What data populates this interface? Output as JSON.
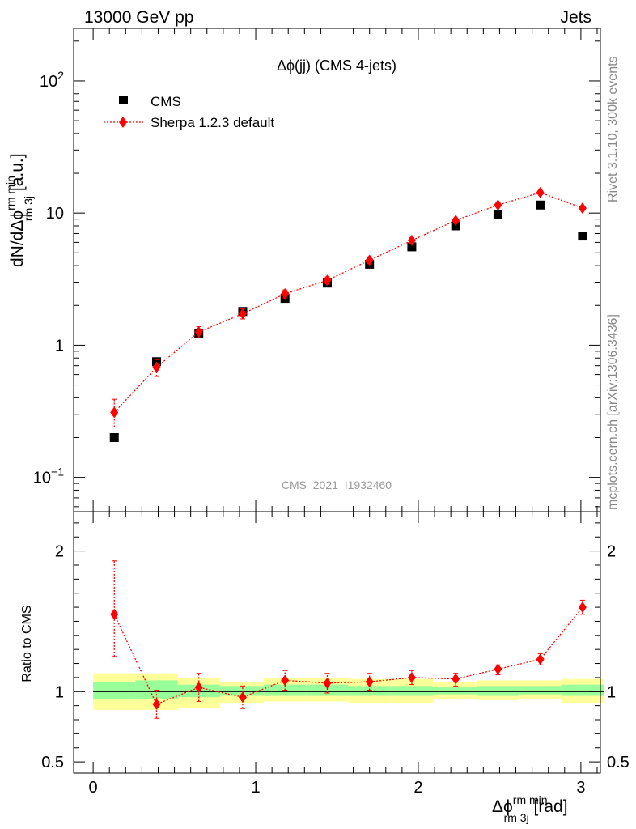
{
  "header": {
    "left": "13000 GeV pp",
    "right": "Jets"
  },
  "side_labels": {
    "events": "Rivet 3.1.10,  300k events",
    "source": "mcplots.cern.ch [arXiv:1306.3436]"
  },
  "colors": {
    "data": "#000000",
    "mc": "#ff0000",
    "band_inner": "#99ff99",
    "band_outer": "#ffff99"
  },
  "chart_data": [
    {
      "type": "scatter",
      "title": "Δϕ(jj) (CMS 4-jets)",
      "ylabel": "dN/dΔϕ",
      "ylabel_sup": "rm min",
      "ylabel_sub": "rm 3j",
      "ylabel_unit": "[a.u.]",
      "yscale": "log",
      "xlim": [
        -0.12,
        3.12
      ],
      "ylim": [
        0.055,
        250
      ],
      "yticks": [
        {
          "value": 0.1,
          "base": "10",
          "exp": "−1"
        },
        {
          "value": 1,
          "label": "1"
        },
        {
          "value": 10,
          "label": "10"
        },
        {
          "value": 100,
          "base": "10",
          "exp": "2"
        }
      ],
      "watermark": "CMS_2021_I1932460",
      "legend": {
        "position": "top-left",
        "entries": [
          "CMS",
          "Sherpa 1.2.3 default"
        ]
      },
      "x": [
        0.13,
        0.39,
        0.65,
        0.92,
        1.18,
        1.44,
        1.7,
        1.96,
        2.23,
        2.49,
        2.75,
        3.01
      ],
      "series": [
        {
          "name": "CMS",
          "style": "marker-square",
          "values": [
            0.2,
            0.75,
            1.22,
            1.8,
            2.26,
            2.95,
            4.1,
            5.55,
            8.0,
            9.8,
            11.5,
            6.7
          ]
        },
        {
          "name": "Sherpa 1.2.3 default",
          "style": "diamond-dotted",
          "values": [
            0.31,
            0.68,
            1.26,
            1.73,
            2.45,
            3.1,
            4.4,
            6.2,
            8.8,
            11.5,
            14.3,
            10.9
          ],
          "err_lo": [
            0.24,
            0.58,
            1.14,
            1.58,
            2.28,
            2.92,
            4.15,
            5.9,
            8.45,
            11.1,
            13.8,
            10.5
          ],
          "err_hi": [
            0.39,
            0.78,
            1.38,
            1.88,
            2.62,
            3.28,
            4.65,
            6.5,
            9.15,
            11.9,
            14.8,
            11.3
          ]
        }
      ]
    },
    {
      "type": "scatter",
      "ylabel": "Ratio to CMS",
      "xlabel": "Δϕ",
      "xlabel_sup": "rm min",
      "xlabel_sub": "rm 3j",
      "xlabel_unit": "[rad]",
      "xlim": [
        -0.12,
        3.12
      ],
      "ylim": [
        0.42,
        2.28
      ],
      "xticks": [
        0,
        1,
        2,
        3
      ],
      "yticks": [
        0.5,
        1,
        2
      ],
      "bin_edges": [
        0,
        0.26,
        0.52,
        0.78,
        1.05,
        1.31,
        1.57,
        1.83,
        2.09,
        2.36,
        2.62,
        2.88,
        3.14
      ],
      "band_inner": {
        "lo": [
          0.95,
          0.95,
          0.96,
          0.97,
          0.97,
          0.97,
          0.97,
          0.97,
          0.98,
          0.97,
          0.98,
          0.97
        ],
        "hi": [
          1.07,
          1.08,
          1.05,
          1.04,
          1.05,
          1.05,
          1.04,
          1.04,
          1.03,
          1.04,
          1.04,
          1.05
        ]
      },
      "band_outer": {
        "lo": [
          0.87,
          0.87,
          0.88,
          0.92,
          0.93,
          0.93,
          0.92,
          0.92,
          0.95,
          0.94,
          0.95,
          0.92
        ],
        "hi": [
          1.13,
          1.13,
          1.1,
          1.07,
          1.1,
          1.1,
          1.09,
          1.09,
          1.07,
          1.08,
          1.08,
          1.09
        ]
      },
      "reference": 1,
      "x": [
        0.13,
        0.39,
        0.65,
        0.92,
        1.18,
        1.44,
        1.7,
        1.96,
        2.23,
        2.49,
        2.75,
        3.01
      ],
      "series": [
        {
          "name": "Sherpa 1.2.3 default",
          "style": "diamond-dotted",
          "values": [
            1.55,
            0.91,
            1.03,
            0.96,
            1.08,
            1.06,
            1.07,
            1.1,
            1.09,
            1.16,
            1.23,
            1.6
          ],
          "err_lo": [
            1.25,
            0.81,
            0.93,
            0.88,
            1.01,
            0.99,
            1.01,
            1.05,
            1.04,
            1.12,
            1.19,
            1.55
          ],
          "err_hi": [
            1.93,
            1.01,
            1.13,
            1.04,
            1.15,
            1.13,
            1.13,
            1.15,
            1.13,
            1.19,
            1.27,
            1.65
          ]
        }
      ]
    }
  ]
}
